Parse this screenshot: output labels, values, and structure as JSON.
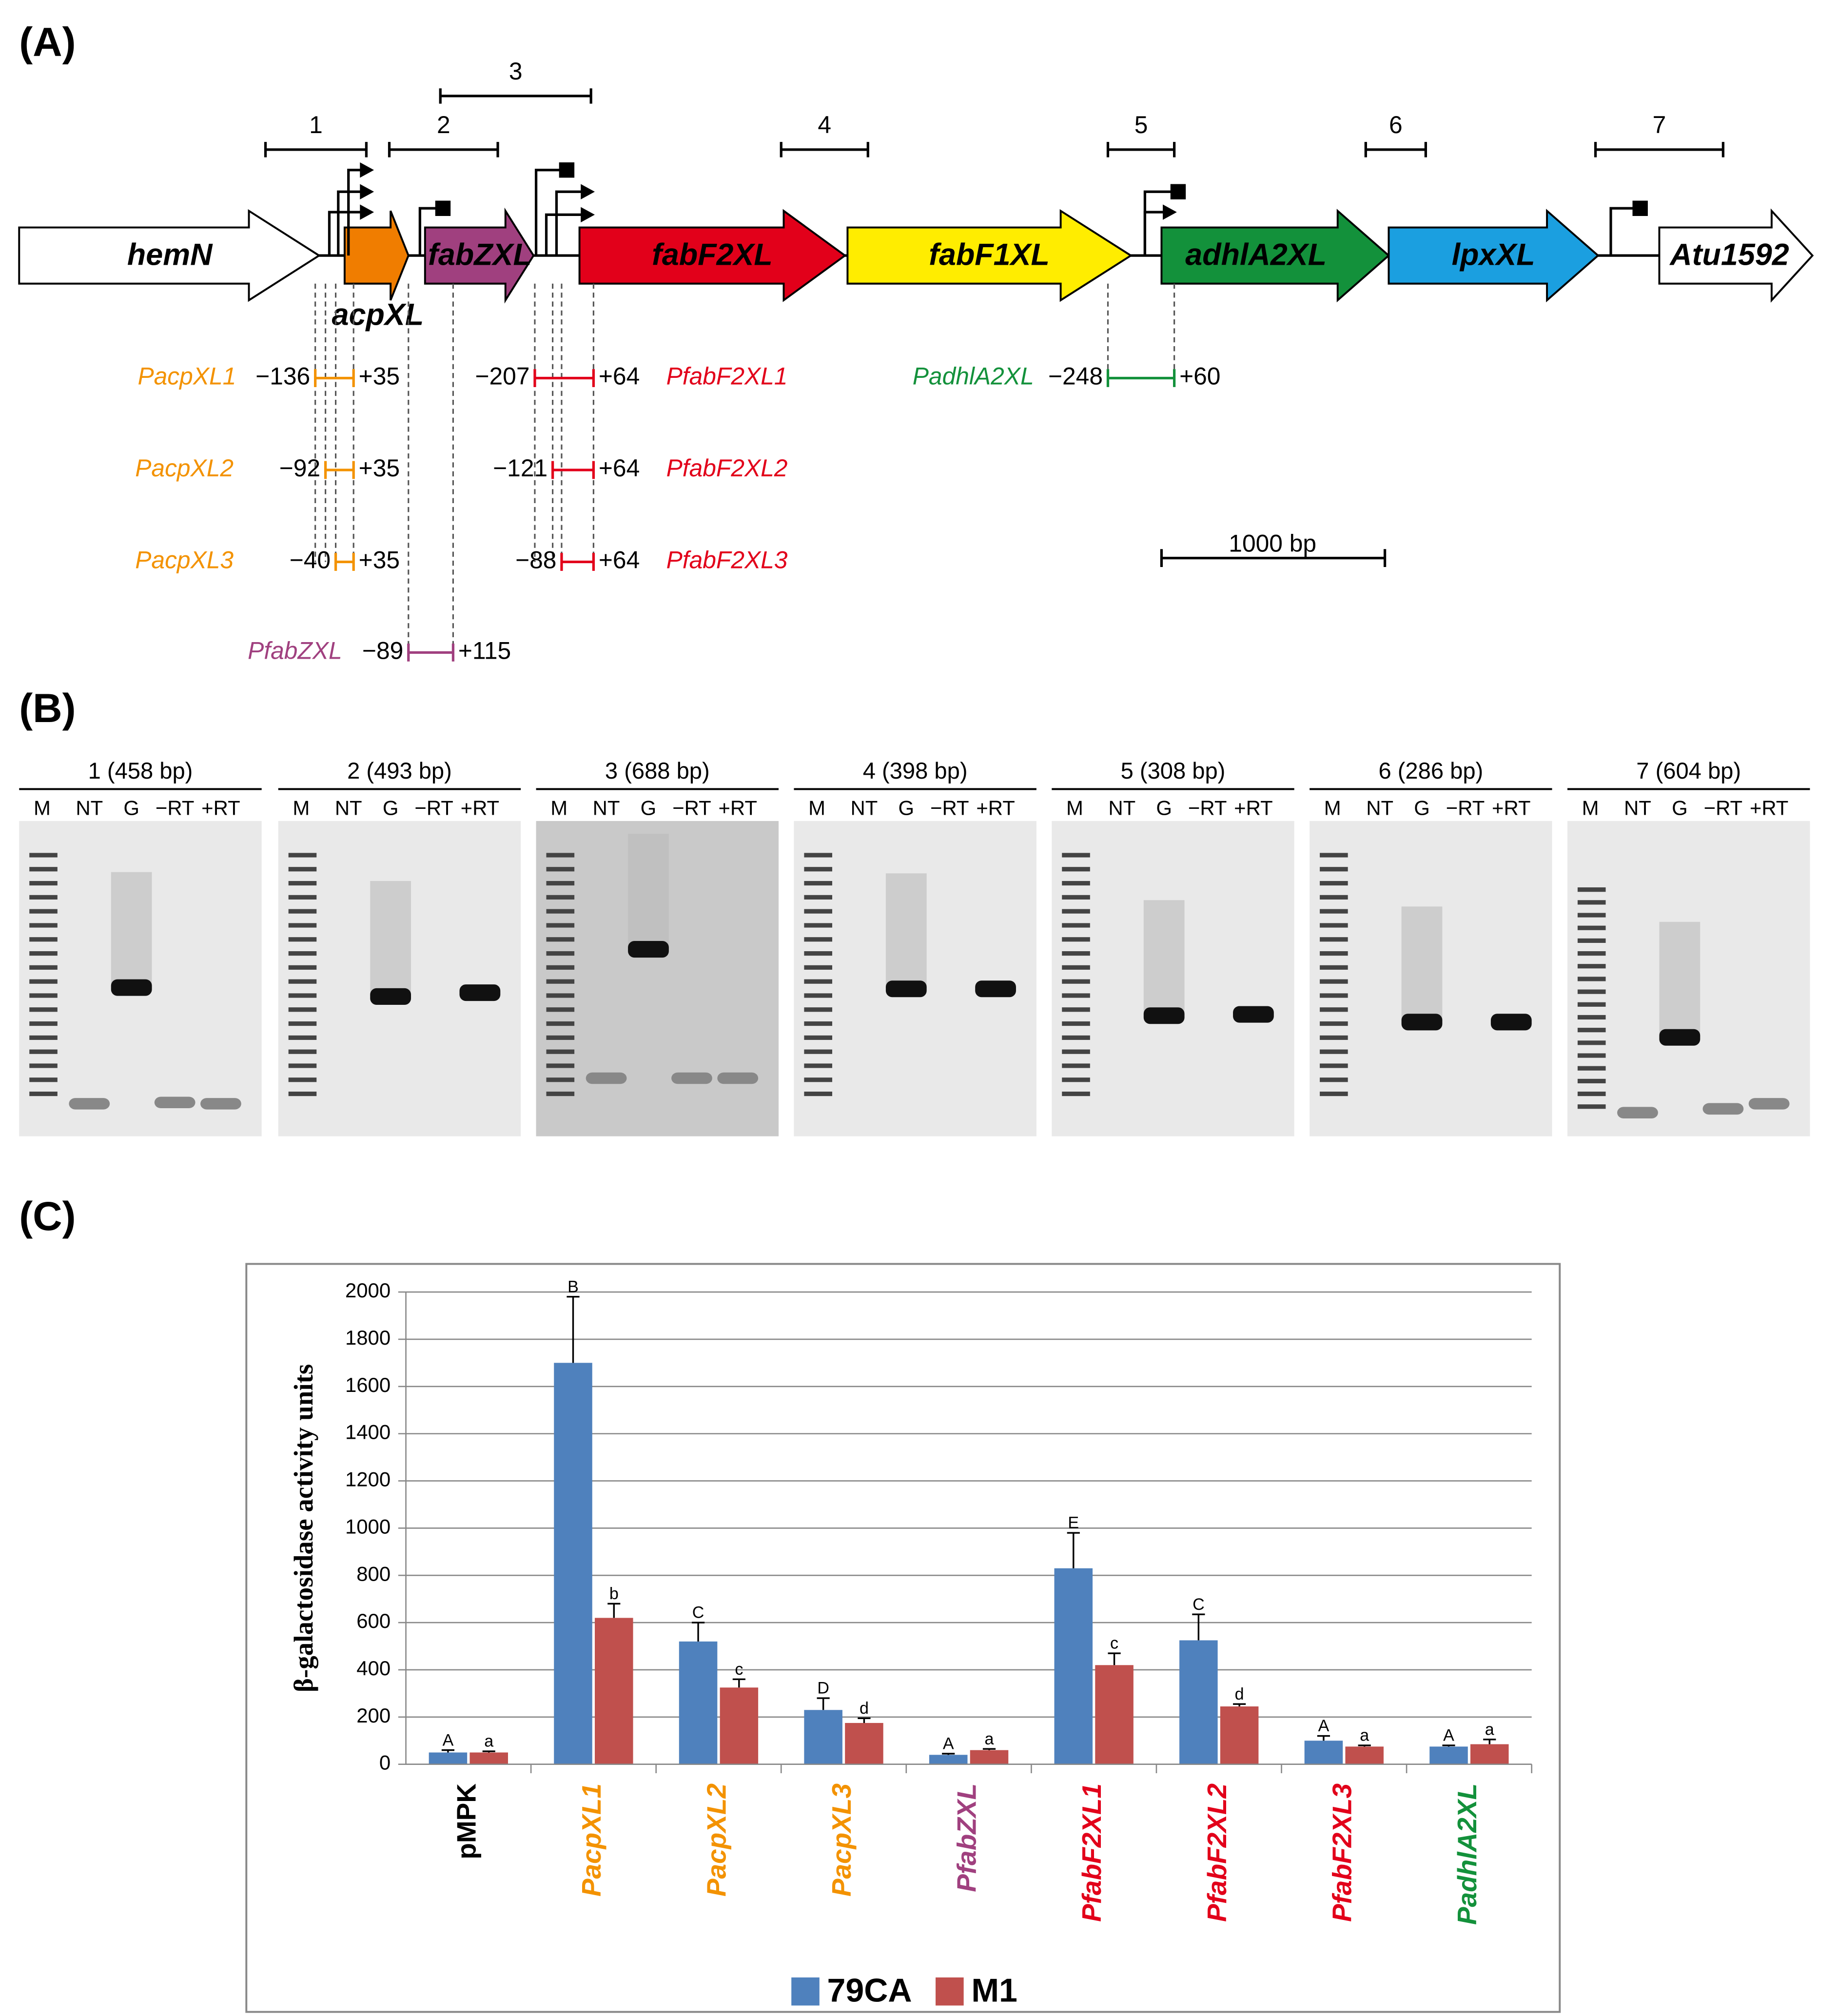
{
  "panel_labels": [
    "(A)",
    "(B)",
    "(C)"
  ],
  "diagram": {
    "regions": [
      "1",
      "2",
      "3",
      "4",
      "5",
      "6",
      "7"
    ],
    "genes": [
      {
        "name": "hemN",
        "color": "#ffffff"
      },
      {
        "name": "acpXL",
        "color": "#f07d00"
      },
      {
        "name": "fabZXL",
        "color": "#a0407f"
      },
      {
        "name": "fabF2XL",
        "color": "#e2001a"
      },
      {
        "name": "fabF1XL",
        "color": "#ffed00"
      },
      {
        "name": "adhlA2XL",
        "color": "#13913b"
      },
      {
        "name": "lpxXL",
        "color": "#1b9fe0"
      },
      {
        "name": "Atu1592",
        "color": "#ffffff"
      }
    ],
    "fragments": [
      {
        "name": "PacpXL1",
        "start": "−136",
        "end": "+35",
        "color": "#f39200"
      },
      {
        "name": "PacpXL2",
        "start": "−92",
        "end": "+35",
        "color": "#f39200"
      },
      {
        "name": "PacpXL3",
        "start": "−40",
        "end": "+35",
        "color": "#f39200"
      },
      {
        "name": "PfabZXL",
        "start": "−89",
        "end": "+115",
        "color": "#a0407f"
      },
      {
        "name": "PfabF2XL1",
        "start": "−207",
        "end": "+64",
        "color": "#e2001a"
      },
      {
        "name": "PfabF2XL2",
        "start": "−121",
        "end": "+64",
        "color": "#e2001a"
      },
      {
        "name": "PfabF2XL3",
        "start": "−88",
        "end": "+64",
        "color": "#e2001a"
      },
      {
        "name": "PadhlA2XL",
        "start": "−248",
        "end": "+60",
        "color": "#13913b"
      }
    ],
    "scale_bar": "1000 bp"
  },
  "gels": {
    "lanes": [
      "M",
      "NT",
      "G",
      "−RT",
      "+RT"
    ],
    "titles": [
      "1 (458 bp)",
      "2 (493 bp)",
      "3 (688 bp)",
      "4 (398 bp)",
      "5 (308 bp)",
      "6 (286 bp)",
      "7 (604 bp)"
    ]
  },
  "chart_data": {
    "type": "bar",
    "ylabel": "β-galactosidase activity units",
    "categories": [
      "pMPK",
      "PacpXL1",
      "PacpXL2",
      "PacpXL3",
      "PfabZXL",
      "PfabF2XL1",
      "PfabF2XL2",
      "PfabF2XL3",
      "PadhlA2XL"
    ],
    "category_colors": [
      "#000000",
      "#f39200",
      "#f39200",
      "#f39200",
      "#a0407f",
      "#e2001a",
      "#e2001a",
      "#e2001a",
      "#13913b"
    ],
    "series": [
      {
        "name": "79CA",
        "color": "#4f81bd",
        "values": [
          50,
          1700,
          520,
          230,
          40,
          830,
          525,
          100,
          75
        ],
        "errors": [
          10,
          280,
          80,
          50,
          5,
          150,
          110,
          20,
          5
        ],
        "letters": [
          "A",
          "B",
          "C",
          "D",
          "A",
          "E",
          "C",
          "A",
          "A"
        ]
      },
      {
        "name": "M1",
        "color": "#c0504d",
        "values": [
          50,
          620,
          325,
          175,
          60,
          420,
          245,
          75,
          85
        ],
        "errors": [
          5,
          60,
          35,
          20,
          5,
          50,
          10,
          5,
          20
        ],
        "letters": [
          "a",
          "b",
          "c",
          "d",
          "a",
          "c",
          "d",
          "a",
          "a"
        ]
      }
    ],
    "ylim": [
      0,
      2000
    ],
    "yticks": [
      0,
      200,
      400,
      600,
      800,
      1000,
      1200,
      1400,
      1600,
      1800,
      2000
    ],
    "grid": true,
    "legend": "bottom"
  }
}
